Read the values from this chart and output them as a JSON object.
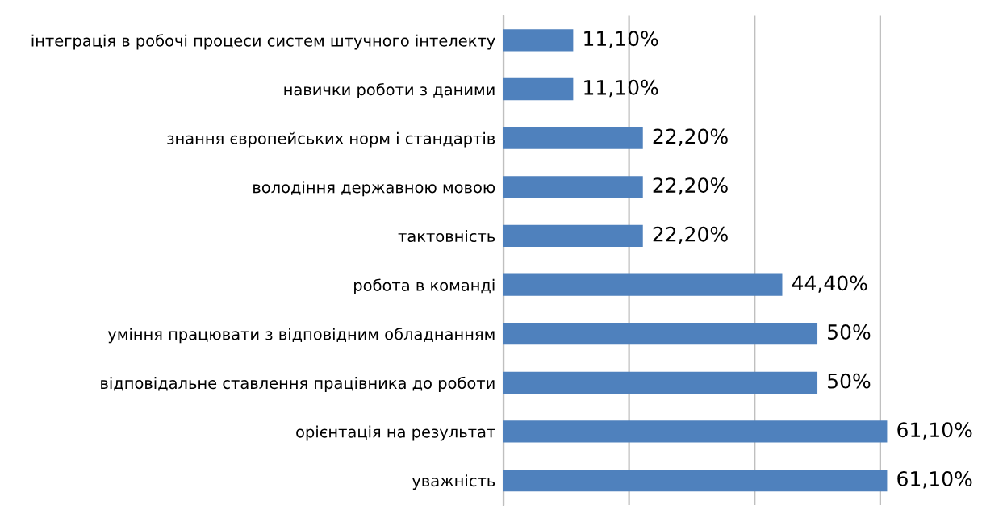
{
  "chart_data": {
    "type": "bar",
    "orientation": "horizontal",
    "categories": [
      "інтеграція в робочі процеси систем штучного інтелекту",
      "навички роботи з даними",
      "знання європейських норм і стандартів",
      "володіння державною мовою",
      "тактовність",
      "робота в команді",
      "уміння працювати з відповідним обладнанням",
      "відповідальне ставлення працівника до роботи",
      "орієнтація на результат",
      "уважність"
    ],
    "values": [
      11.1,
      11.1,
      22.2,
      22.2,
      22.2,
      44.4,
      50,
      50,
      61.1,
      61.1
    ],
    "value_labels": [
      "11,10%",
      "11,10%",
      "22,20%",
      "22,20%",
      "22,20%",
      "44,40%",
      "50%",
      "50%",
      "61,10%",
      "61,10%"
    ],
    "color": "#4f81bd",
    "tick_labels": "y",
    "grid": "x"
  }
}
